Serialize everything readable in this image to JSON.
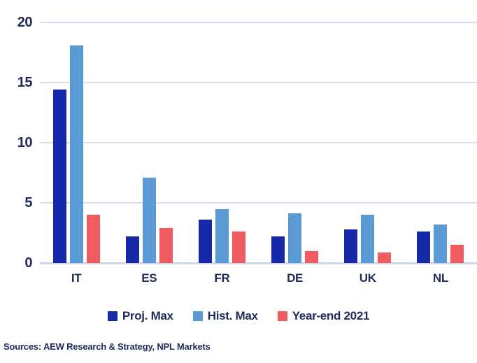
{
  "source": "Sources: AEW Research & Strategy, NPL Markets",
  "colors": {
    "text_navy": "#1F2A5A",
    "gridline": "#D8DEF2",
    "axis_line": "#CDD5EF",
    "background": "#FFFFFF",
    "proj_max": "#1629A8",
    "hist_max": "#5B9BD5",
    "year_end_2021": "#F05B5F"
  },
  "chart_data": {
    "type": "bar",
    "title": "",
    "xlabel": "",
    "ylabel": "",
    "categories": [
      "IT",
      "ES",
      "FR",
      "DE",
      "UK",
      "NL"
    ],
    "series": [
      {
        "name": "Proj. Max",
        "color": "#1629A8",
        "values": [
          14.4,
          2.2,
          3.6,
          2.2,
          2.8,
          2.6
        ]
      },
      {
        "name": "Hist. Max",
        "color": "#5B9BD5",
        "values": [
          18.1,
          7.1,
          4.5,
          4.1,
          4.0,
          3.2
        ]
      },
      {
        "name": "Year-end 2021",
        "color": "#F05B5F",
        "values": [
          4.0,
          2.9,
          2.6,
          1.0,
          0.9,
          1.5
        ]
      }
    ],
    "ylim": [
      0,
      20
    ],
    "yticks": [
      0,
      5,
      10,
      15,
      20
    ],
    "grid": true,
    "legend_position": "bottom"
  }
}
